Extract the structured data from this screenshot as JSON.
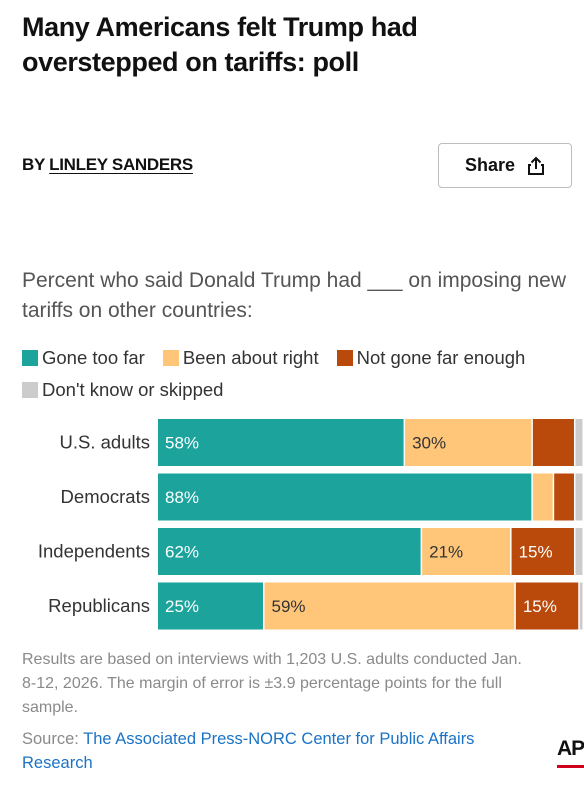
{
  "article": {
    "headline": "Many Americans felt Trump had overstepped on tariffs: poll",
    "byline_prefix": "BY",
    "byline_author": "LINLEY SANDERS",
    "share_label": "Share"
  },
  "chart_data": {
    "type": "bar",
    "orientation": "horizontal-stacked",
    "title": "Percent who said Donald Trump had ___ on imposing new tariffs on other countries:",
    "categories": [
      "U.S. adults",
      "Democrats",
      "Independents",
      "Republicans"
    ],
    "series": [
      {
        "name": "Gone too far",
        "color": "#1ba39c",
        "values": [
          58,
          88,
          62,
          25
        ],
        "labels": [
          "58%",
          "88%",
          "62%",
          "25%"
        ]
      },
      {
        "name": "Been about right",
        "color": "#ffc67a",
        "values": [
          30,
          5,
          21,
          59
        ],
        "labels": [
          "30%",
          "",
          "21%",
          "59%"
        ]
      },
      {
        "name": "Not gone far enough",
        "color": "#b94a0c",
        "values": [
          10,
          5,
          15,
          15
        ],
        "labels": [
          "",
          "",
          "15%",
          "15%"
        ]
      },
      {
        "name": "Don't know or skipped",
        "color": "#cccccc",
        "values": [
          2,
          2,
          2,
          1
        ],
        "labels": [
          "",
          "",
          "",
          ""
        ]
      }
    ],
    "xlim": [
      0,
      100
    ],
    "legend_position": "top"
  },
  "footer": {
    "note": "Results are based on interviews with 1,203 U.S. adults conducted Jan. 8-12, 2026. The margin of error is ±3.9 percentage points for the full sample.",
    "source_prefix": "Source:",
    "source_link": "The Associated Press-NORC Center for Public Affairs Research",
    "logo_text": "AP"
  },
  "icons": {
    "share": "share-icon"
  }
}
